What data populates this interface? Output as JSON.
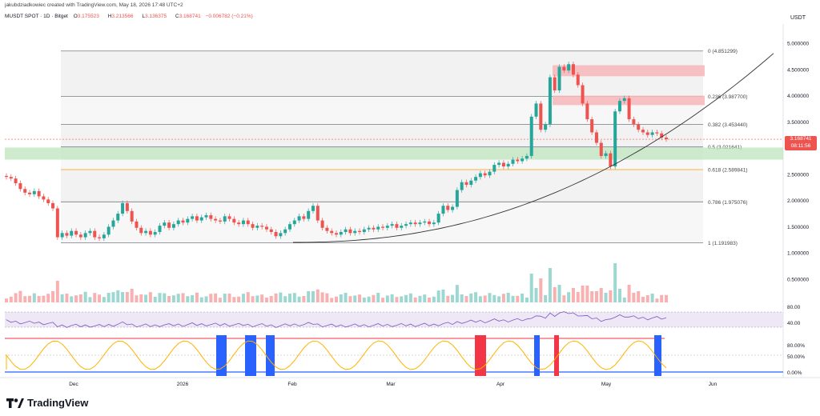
{
  "header": {
    "credit": "jakubdziadkowiec created with TradingView.com, May 18, 2026 17:48 UTC+2",
    "symbol": "MUSDT SPOT · 1D · Bitget",
    "o_label": "O",
    "o_val": "3.175523",
    "h_label": "H",
    "h_val": "3.213566",
    "l_label": "L",
    "l_val": "3.136375",
    "c_label": "C",
    "c_val": "3.168741",
    "chg": "−0.006782 (−0.21%)",
    "currency": "USDT"
  },
  "last_price": {
    "value": "3.168741",
    "countdown": "08:11:56",
    "color": "#ef5350"
  },
  "colors": {
    "up": "#26a69a",
    "down": "#ef5350",
    "fib_line": "#787b86",
    "fib_band": "#e3e3e3",
    "green_zone": "#b9e3b9",
    "red_zone": "#f7b6ba",
    "rsi": "#7e57c2",
    "orange": "#ff9800"
  },
  "logo_text": "TradingView",
  "chart_data": {
    "type": "candlestick",
    "y_scale": "linear",
    "ylim": [
      0.45,
      5.2
    ],
    "yticks": [
      "5.000000",
      "4.500000",
      "4.000000",
      "3.500000",
      "3.000000",
      "2.500000",
      "2.000000",
      "1.500000",
      "1.000000",
      "0.500000"
    ],
    "xticks": [
      "Dec",
      "2026",
      "Feb",
      "Mar",
      "Apr",
      "May",
      "Jun"
    ],
    "fib_levels": [
      {
        "ratio": "0",
        "price": 4.851299,
        "label": "0 (4.851299)"
      },
      {
        "ratio": "0.236",
        "price": 3.9877,
        "label": "0.236 (3.987700)"
      },
      {
        "ratio": "0.382",
        "price": 3.45344,
        "label": "0.382 (3.453440)"
      },
      {
        "ratio": "0.5",
        "price": 3.021641,
        "label": "0.5 (3.021641)"
      },
      {
        "ratio": "0.618",
        "price": 2.589841,
        "label": "0.618 (2.589841)"
      },
      {
        "ratio": "0.786",
        "price": 1.975076,
        "label": "0.786 (1.975076)"
      },
      {
        "ratio": "1",
        "price": 1.191983,
        "label": "1 (1.191983)"
      }
    ],
    "zones": [
      {
        "kind": "red",
        "low": 4.37,
        "high": 4.58
      },
      {
        "kind": "red",
        "low": 3.82,
        "high": 4.0
      },
      {
        "kind": "green",
        "low": 2.78,
        "high": 3.01
      }
    ],
    "series_close": [
      2.45,
      2.42,
      2.33,
      2.22,
      2.15,
      2.12,
      2.18,
      2.08,
      2.02,
      1.95,
      1.85,
      1.3,
      1.38,
      1.33,
      1.42,
      1.35,
      1.3,
      1.38,
      1.42,
      1.3,
      1.28,
      1.35,
      1.5,
      1.62,
      1.75,
      1.95,
      1.8,
      1.6,
      1.48,
      1.38,
      1.42,
      1.35,
      1.4,
      1.52,
      1.58,
      1.48,
      1.55,
      1.62,
      1.58,
      1.65,
      1.7,
      1.62,
      1.68,
      1.72,
      1.65,
      1.62,
      1.6,
      1.7,
      1.65,
      1.58,
      1.55,
      1.62,
      1.55,
      1.48,
      1.52,
      1.5,
      1.45,
      1.4,
      1.32,
      1.38,
      1.45,
      1.55,
      1.62,
      1.7,
      1.65,
      1.8,
      1.9,
      1.62,
      1.48,
      1.42,
      1.38,
      1.35,
      1.4,
      1.45,
      1.38,
      1.42,
      1.4,
      1.45,
      1.48,
      1.45,
      1.5,
      1.48,
      1.52,
      1.55,
      1.48,
      1.52,
      1.55,
      1.58,
      1.55,
      1.58,
      1.6,
      1.55,
      1.58,
      1.75,
      1.9,
      1.82,
      1.88,
      2.2,
      2.35,
      2.3,
      2.38,
      2.45,
      2.52,
      2.48,
      2.55,
      2.68,
      2.72,
      2.65,
      2.7,
      2.78,
      2.75,
      2.8,
      2.85,
      3.6,
      3.85,
      3.35,
      3.45,
      4.35,
      4.1,
      4.55,
      4.48,
      4.6,
      4.4,
      4.2,
      3.85,
      3.55,
      3.3,
      3.1,
      2.85,
      2.9,
      2.65,
      3.7,
      3.9,
      3.95,
      3.55,
      3.45,
      3.35,
      3.3,
      3.25,
      3.3,
      3.28,
      3.2,
      3.17
    ],
    "series_name": ""
  },
  "sub_panels": {
    "rsi_ticks": [
      "80.00",
      "40.00"
    ],
    "osc_ticks": [
      "80.00%",
      "50.00%",
      "0.00%"
    ]
  }
}
